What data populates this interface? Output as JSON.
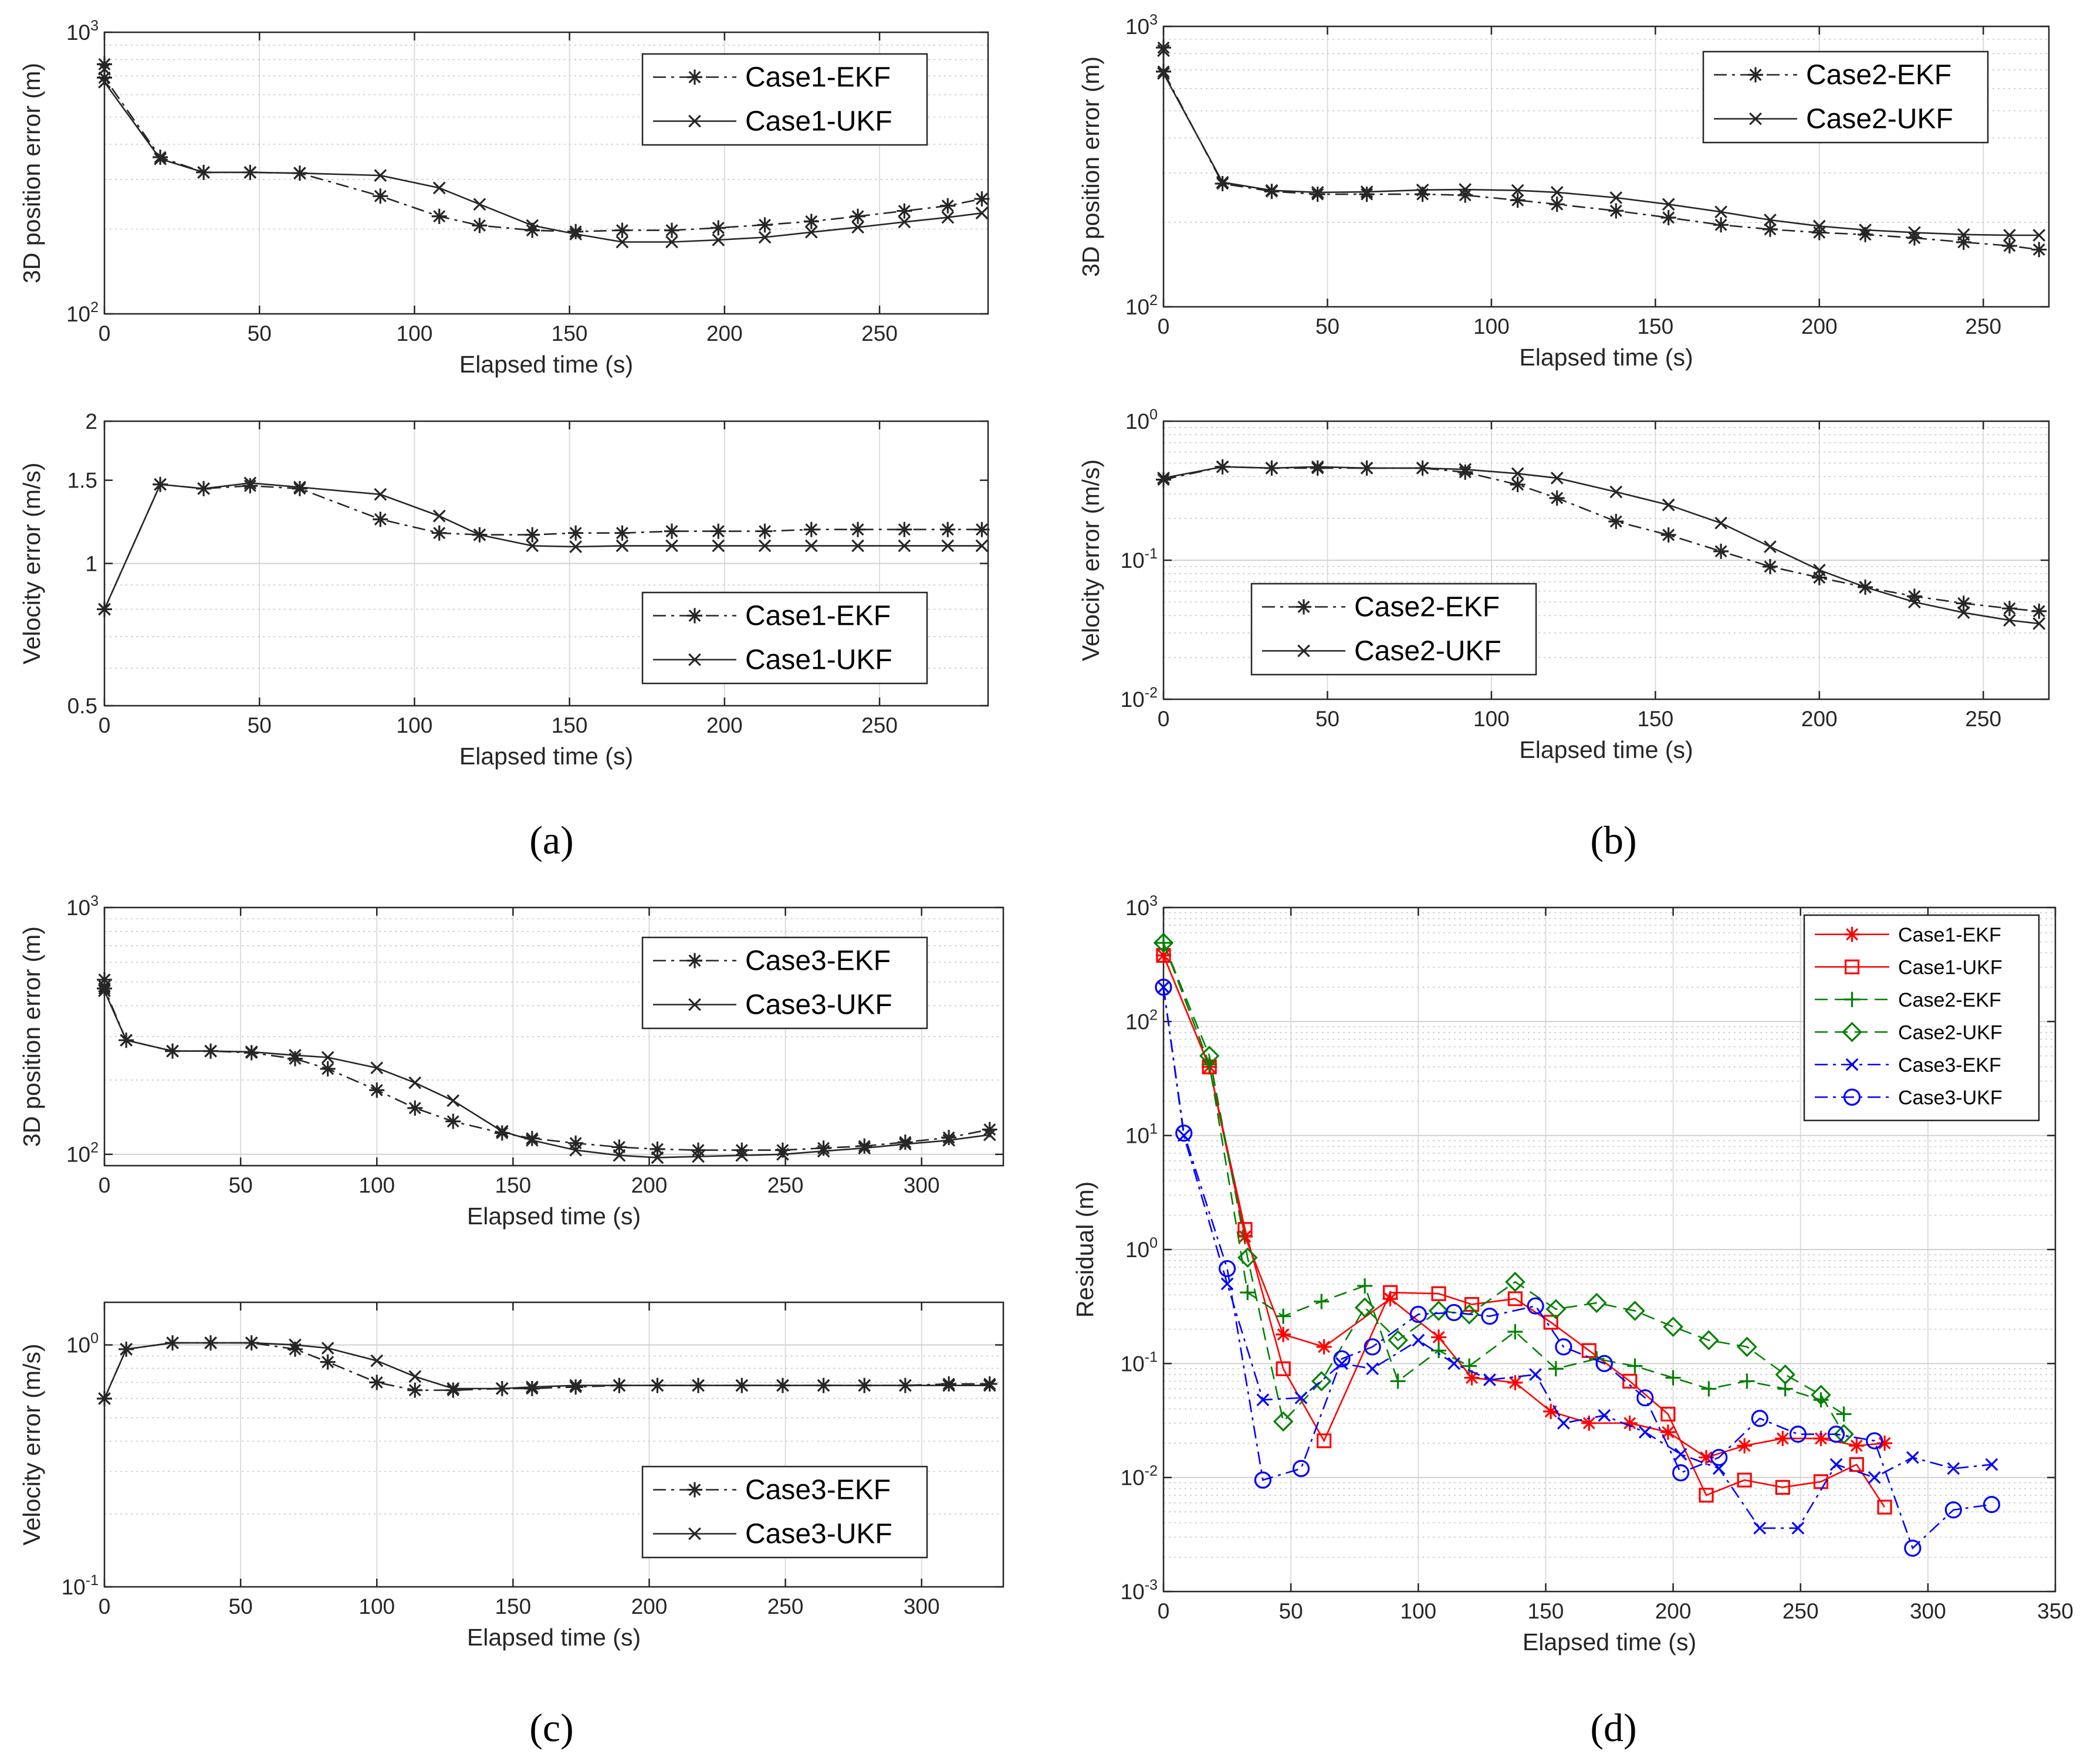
{
  "captions": [
    "(a)",
    "(b)",
    "(c)",
    "(d)"
  ],
  "colors": {
    "ekf_ukf_black": "#262626",
    "case1": "#ff0000",
    "case2": "#008000",
    "case3": "#0000ff"
  },
  "chart_data": [
    {
      "type": "line",
      "panel": "a",
      "yscale": "log",
      "xlabel": "Elapsed time (s)",
      "ylabel": "3D position error (m)",
      "xlim": [
        0,
        285
      ],
      "ylim": [
        100,
        1000
      ],
      "xticks": [
        "0",
        "50",
        "100",
        "150",
        "200",
        "250"
      ],
      "yticks": [
        "10^2",
        "10^3"
      ],
      "legend_loc": "top-right",
      "series": [
        {
          "name": "Case1-EKF",
          "marker": "asterisk",
          "dash": "dashdot",
          "x": [
            0,
            0,
            18,
            32,
            47,
            63,
            89,
            108,
            121,
            138,
            152,
            167,
            183,
            198,
            213,
            228,
            243,
            258,
            272,
            283
          ],
          "y": [
            770,
            690,
            360,
            318,
            318,
            316,
            262,
            222,
            206,
            198,
            196,
            198,
            198,
            202,
            207,
            213,
            222,
            232,
            242,
            256
          ]
        },
        {
          "name": "Case1-UKF",
          "marker": "x",
          "dash": "solid",
          "x": [
            0,
            0,
            18,
            32,
            47,
            63,
            89,
            108,
            121,
            138,
            152,
            167,
            183,
            198,
            213,
            228,
            243,
            258,
            272,
            283
          ],
          "y": [
            740,
            665,
            355,
            318,
            318,
            316,
            310,
            280,
            245,
            206,
            192,
            180,
            180,
            183,
            187,
            195,
            203,
            212,
            220,
            228
          ]
        }
      ]
    },
    {
      "type": "line",
      "panel": "a",
      "yscale": "log",
      "xlabel": "Elapsed time (s)",
      "ylabel": "Velocity error (m/s)",
      "xlim": [
        0,
        285
      ],
      "ylim": [
        0.5,
        2
      ],
      "xticks": [
        "0",
        "50",
        "100",
        "150",
        "200",
        "250"
      ],
      "yticks": [
        "0.5",
        "1",
        "1.5",
        "2"
      ],
      "legend_loc": "bottom-right",
      "series": [
        {
          "name": "Case1-EKF",
          "marker": "asterisk",
          "dash": "dashdot",
          "x": [
            0,
            18,
            32,
            47,
            63,
            89,
            108,
            121,
            138,
            152,
            167,
            183,
            198,
            213,
            228,
            243,
            258,
            272,
            283
          ],
          "y": [
            0.8,
            1.47,
            1.44,
            1.46,
            1.44,
            1.24,
            1.16,
            1.15,
            1.15,
            1.16,
            1.16,
            1.17,
            1.17,
            1.17,
            1.18,
            1.18,
            1.18,
            1.18,
            1.18
          ]
        },
        {
          "name": "Case1-UKF",
          "marker": "x",
          "dash": "solid",
          "x": [
            0,
            18,
            32,
            47,
            63,
            89,
            108,
            121,
            138,
            152,
            167,
            183,
            198,
            213,
            228,
            243,
            258,
            272,
            283
          ],
          "y": [
            0.8,
            1.47,
            1.44,
            1.48,
            1.45,
            1.4,
            1.26,
            1.15,
            1.09,
            1.085,
            1.09,
            1.09,
            1.09,
            1.09,
            1.09,
            1.09,
            1.09,
            1.09,
            1.09
          ]
        }
      ]
    },
    {
      "type": "line",
      "panel": "b",
      "yscale": "log",
      "xlabel": "Elapsed time (s)",
      "ylabel": "3D position error (m)",
      "xlim": [
        0,
        270
      ],
      "ylim": [
        100,
        1000
      ],
      "xticks": [
        "0",
        "50",
        "100",
        "150",
        "200",
        "250"
      ],
      "yticks": [
        "10^2",
        "10^3"
      ],
      "legend_loc": "top-right",
      "series": [
        {
          "name": "Case2-EKF",
          "marker": "asterisk",
          "dash": "dashdot",
          "x": [
            0,
            0,
            18,
            33,
            47,
            62,
            79,
            92,
            108,
            120,
            138,
            154,
            170,
            185,
            200,
            214,
            229,
            244,
            258,
            267
          ],
          "y": [
            840,
            690,
            275,
            258,
            252,
            252,
            252,
            250,
            240,
            232,
            220,
            208,
            196,
            189,
            184,
            181,
            176,
            170,
            165,
            160
          ]
        },
        {
          "name": "Case2-UKF",
          "marker": "x",
          "dash": "solid",
          "x": [
            0,
            0,
            18,
            33,
            47,
            62,
            79,
            92,
            108,
            120,
            138,
            154,
            170,
            185,
            200,
            214,
            229,
            244,
            258,
            267
          ],
          "y": [
            820,
            680,
            278,
            260,
            256,
            257,
            261,
            262,
            260,
            256,
            245,
            232,
            218,
            204,
            194,
            188,
            184,
            181,
            180,
            180
          ]
        }
      ]
    },
    {
      "type": "line",
      "panel": "b",
      "yscale": "log",
      "xlabel": "Elapsed time (s)",
      "ylabel": "Velocity error (m/s)",
      "xlim": [
        0,
        270
      ],
      "ylim": [
        0.01,
        1
      ],
      "xticks": [
        "0",
        "50",
        "100",
        "150",
        "200",
        "250"
      ],
      "yticks": [
        "10^-2",
        "10^-1",
        "10^0"
      ],
      "legend_loc": "bottom-left",
      "series": [
        {
          "name": "Case2-EKF",
          "marker": "asterisk",
          "dash": "dashdot",
          "x": [
            0,
            18,
            33,
            47,
            62,
            79,
            92,
            108,
            120,
            138,
            154,
            170,
            185,
            200,
            214,
            229,
            244,
            258,
            267
          ],
          "y": [
            0.38,
            0.47,
            0.46,
            0.46,
            0.46,
            0.46,
            0.43,
            0.35,
            0.28,
            0.19,
            0.152,
            0.116,
            0.09,
            0.075,
            0.064,
            0.055,
            0.049,
            0.045,
            0.043
          ]
        },
        {
          "name": "Case2-UKF",
          "marker": "x",
          "dash": "solid",
          "x": [
            0,
            18,
            33,
            47,
            62,
            79,
            92,
            108,
            120,
            138,
            154,
            170,
            185,
            200,
            214,
            229,
            244,
            258,
            267
          ],
          "y": [
            0.39,
            0.47,
            0.46,
            0.47,
            0.46,
            0.46,
            0.45,
            0.42,
            0.39,
            0.31,
            0.25,
            0.185,
            0.125,
            0.085,
            0.064,
            0.05,
            0.042,
            0.037,
            0.035
          ]
        }
      ]
    },
    {
      "type": "line",
      "panel": "c",
      "yscale": "log",
      "xlabel": "Elapsed time (s)",
      "ylabel": "3D position error (m)",
      "xlim": [
        0,
        330
      ],
      "ylim": [
        90,
        1000
      ],
      "xticks": [
        "0",
        "50",
        "100",
        "150",
        "200",
        "250",
        "300"
      ],
      "yticks": [
        "10^2",
        "10^3"
      ],
      "legend_loc": "top-right",
      "series": [
        {
          "name": "Case3-EKF",
          "marker": "asterisk",
          "dash": "dashdot",
          "x": [
            0,
            0,
            8,
            25,
            39,
            54,
            70,
            82,
            100,
            114,
            128,
            146,
            157,
            173,
            189,
            203,
            218,
            234,
            249,
            264,
            279,
            294,
            310,
            325
          ],
          "y": [
            510,
            470,
            290,
            262,
            262,
            258,
            244,
            222,
            182,
            154,
            136,
            122,
            116,
            111,
            107,
            105,
            104,
            104,
            104,
            106,
            108,
            112,
            117,
            126
          ]
        },
        {
          "name": "Case3-UKF",
          "marker": "x",
          "dash": "solid",
          "x": [
            0,
            0,
            8,
            25,
            39,
            54,
            70,
            82,
            100,
            114,
            128,
            146,
            157,
            173,
            189,
            203,
            218,
            234,
            249,
            264,
            279,
            294,
            310,
            325
          ],
          "y": [
            480,
            460,
            290,
            262,
            262,
            260,
            252,
            247,
            224,
            195,
            165,
            124,
            114,
            104,
            99,
            97,
            98,
            99,
            100,
            103,
            106,
            110,
            114,
            120
          ]
        }
      ]
    },
    {
      "type": "line",
      "panel": "c",
      "yscale": "log",
      "xlabel": "Elapsed time (s)",
      "ylabel": "Velocity error (m/s)",
      "xlim": [
        0,
        330
      ],
      "ylim": [
        0.1,
        1.5
      ],
      "xticks": [
        "0",
        "50",
        "100",
        "150",
        "200",
        "250",
        "300"
      ],
      "yticks": [
        "10^-1",
        "10^0"
      ],
      "legend_loc": "bottom-right",
      "series": [
        {
          "name": "Case3-EKF",
          "marker": "asterisk",
          "dash": "dashdot",
          "x": [
            0,
            8,
            25,
            39,
            54,
            70,
            82,
            100,
            114,
            128,
            146,
            157,
            173,
            189,
            203,
            218,
            234,
            249,
            264,
            279,
            294,
            310,
            325
          ],
          "y": [
            0.6,
            0.96,
            1.02,
            1.02,
            1.02,
            0.96,
            0.85,
            0.7,
            0.65,
            0.65,
            0.66,
            0.66,
            0.67,
            0.68,
            0.68,
            0.68,
            0.68,
            0.68,
            0.68,
            0.68,
            0.68,
            0.69,
            0.69
          ]
        },
        {
          "name": "Case3-UKF",
          "marker": "x",
          "dash": "solid",
          "x": [
            0,
            8,
            25,
            39,
            54,
            70,
            82,
            100,
            114,
            128,
            146,
            157,
            173,
            189,
            203,
            218,
            234,
            249,
            264,
            279,
            294,
            310,
            325
          ],
          "y": [
            0.6,
            0.96,
            1.02,
            1.02,
            1.02,
            1.0,
            0.97,
            0.86,
            0.74,
            0.66,
            0.66,
            0.67,
            0.68,
            0.68,
            0.68,
            0.68,
            0.68,
            0.68,
            0.68,
            0.68,
            0.68,
            0.68,
            0.68
          ]
        }
      ]
    },
    {
      "type": "line",
      "panel": "d",
      "yscale": "log",
      "xlabel": "Elapsed time (s)",
      "ylabel": "Residual (m)",
      "xlim": [
        0,
        350
      ],
      "ylim": [
        0.001,
        1000
      ],
      "xticks": [
        "0",
        "50",
        "100",
        "150",
        "200",
        "250",
        "300",
        "350"
      ],
      "yticks": [
        "10^-3",
        "10^-2",
        "10^-1",
        "10^0",
        "10^1",
        "10^2",
        "10^3"
      ],
      "legend_loc": "top-right",
      "series": [
        {
          "name": "Case1-EKF",
          "color": "#ff0000",
          "marker": "asterisk",
          "dash": "solid",
          "x": [
            0,
            18,
            32,
            47,
            63,
            89,
            108,
            121,
            138,
            152,
            167,
            183,
            198,
            213,
            228,
            243,
            258,
            272,
            283
          ],
          "y": [
            380,
            40,
            1.3,
            0.18,
            0.14,
            0.37,
            0.17,
            0.075,
            0.068,
            0.038,
            0.03,
            0.03,
            0.025,
            0.015,
            0.019,
            0.022,
            0.022,
            0.019,
            0.02
          ]
        },
        {
          "name": "Case1-UKF",
          "color": "#ff0000",
          "marker": "square",
          "dash": "solid",
          "x": [
            0,
            18,
            32,
            47,
            63,
            89,
            108,
            121,
            138,
            152,
            167,
            183,
            198,
            213,
            228,
            243,
            258,
            272,
            283
          ],
          "y": [
            380,
            40,
            1.5,
            0.09,
            0.021,
            0.42,
            0.41,
            0.33,
            0.37,
            0.23,
            0.13,
            0.07,
            0.036,
            0.007,
            0.0095,
            0.0082,
            0.0092,
            0.013,
            0.0055
          ]
        },
        {
          "name": "Case2-EKF",
          "color": "#008000",
          "marker": "plus",
          "dash": "dashed",
          "x": [
            0,
            18,
            33,
            47,
            62,
            79,
            92,
            108,
            120,
            138,
            154,
            170,
            185,
            200,
            214,
            229,
            244,
            258,
            267
          ],
          "y": [
            490,
            42,
            0.42,
            0.26,
            0.35,
            0.48,
            0.07,
            0.13,
            0.095,
            0.19,
            0.09,
            0.11,
            0.095,
            0.075,
            0.06,
            0.07,
            0.06,
            0.048,
            0.036
          ]
        },
        {
          "name": "Case2-UKF",
          "color": "#008000",
          "marker": "diamond",
          "dash": "dashed",
          "x": [
            0,
            18,
            33,
            47,
            62,
            79,
            92,
            108,
            120,
            138,
            154,
            170,
            185,
            200,
            214,
            229,
            244,
            258,
            267
          ],
          "y": [
            490,
            50,
            0.85,
            0.031,
            0.07,
            0.31,
            0.16,
            0.29,
            0.27,
            0.52,
            0.3,
            0.34,
            0.29,
            0.21,
            0.16,
            0.14,
            0.08,
            0.053,
            0.024
          ]
        },
        {
          "name": "Case3-EKF",
          "color": "#0000ff",
          "marker": "x",
          "dash": "dashdot",
          "x": [
            0,
            8,
            25,
            39,
            54,
            70,
            82,
            100,
            114,
            128,
            146,
            157,
            173,
            189,
            203,
            218,
            234,
            249,
            264,
            279,
            294,
            310,
            325
          ],
          "y": [
            200,
            10,
            0.5,
            0.048,
            0.05,
            0.1,
            0.09,
            0.16,
            0.1,
            0.072,
            0.08,
            0.03,
            0.035,
            0.025,
            0.016,
            0.012,
            0.0036,
            0.0036,
            0.013,
            0.01,
            0.015,
            0.012,
            0.013
          ]
        },
        {
          "name": "Case3-UKF",
          "color": "#0000ff",
          "marker": "circle",
          "dash": "dashdot",
          "x": [
            0,
            8,
            25,
            39,
            54,
            70,
            82,
            100,
            114,
            128,
            146,
            157,
            173,
            189,
            203,
            218,
            234,
            249,
            264,
            279,
            294,
            310,
            325
          ],
          "y": [
            200,
            10.5,
            0.68,
            0.0095,
            0.012,
            0.11,
            0.14,
            0.27,
            0.28,
            0.26,
            0.32,
            0.14,
            0.1,
            0.05,
            0.011,
            0.015,
            0.033,
            0.024,
            0.024,
            0.021,
            0.0024,
            0.0052,
            0.0058
          ]
        }
      ]
    }
  ]
}
